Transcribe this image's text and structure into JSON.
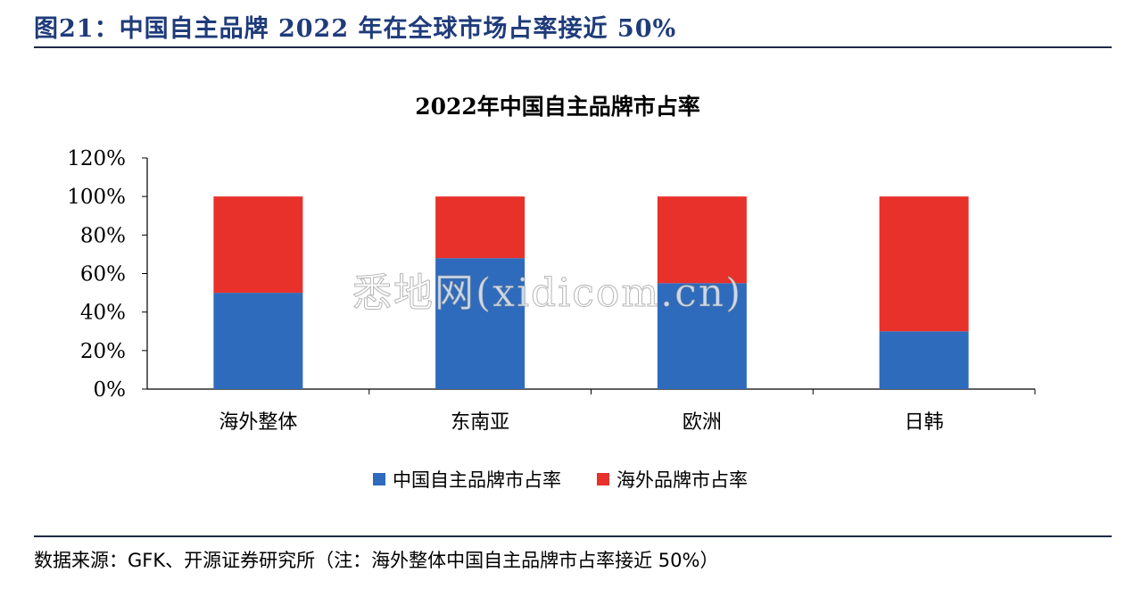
{
  "figure_title": "图21：中国自主品牌 2022 年在全球市场占率接近 50%",
  "source_note": "数据来源：GFK、开源证券研究所（注：海外整体中国自主品牌市占率接近 50%）",
  "watermark": "悉地网(xidicom.cn)",
  "colors": {
    "china": "#2e6bbd",
    "overseas": "#e8312a",
    "title": "#1f3b7a"
  },
  "chart_data": {
    "type": "bar",
    "stacked": true,
    "title": "2022年中国自主品牌市占率",
    "categories": [
      "海外整体",
      "东南亚",
      "欧洲",
      "日韩"
    ],
    "series": [
      {
        "name": "中国自主品牌市占率",
        "values": [
          0.5,
          0.68,
          0.55,
          0.3
        ]
      },
      {
        "name": "海外品牌市占率",
        "values": [
          0.5,
          0.32,
          0.45,
          0.7
        ]
      }
    ],
    "ylim": [
      0,
      1.2
    ],
    "yticks": [
      "0%",
      "20%",
      "40%",
      "60%",
      "80%",
      "100%",
      "120%"
    ],
    "legend": "bottom",
    "grid": false
  }
}
